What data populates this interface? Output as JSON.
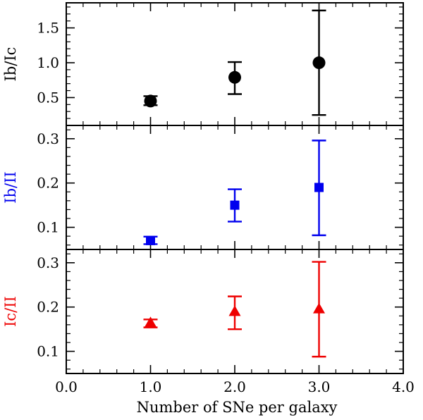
{
  "chart_data": [
    {
      "type": "scatter",
      "panel": "top",
      "ylabel": "Ib/Ic",
      "color": "#000000",
      "marker": "circle",
      "xlim": [
        0.0,
        4.0
      ],
      "ylim": [
        0.1,
        1.86
      ],
      "yticks_major": [
        0.5,
        1.0,
        1.5
      ],
      "ytick_labels": [
        "0.5",
        "1.0",
        "1.5"
      ],
      "points": [
        {
          "x": 1.0,
          "y": 0.45,
          "err_low": 0.39,
          "err_high": 0.52
        },
        {
          "x": 2.0,
          "y": 0.79,
          "err_low": 0.55,
          "err_high": 1.01
        },
        {
          "x": 3.0,
          "y": 1.0,
          "err_low": 0.25,
          "err_high": 1.75
        }
      ]
    },
    {
      "type": "scatter",
      "panel": "middle",
      "ylabel": "Ib/II",
      "color": "#0000ee",
      "marker": "square",
      "xlim": [
        0.0,
        4.0
      ],
      "ylim": [
        0.05,
        0.33
      ],
      "yticks_major": [
        0.1,
        0.2,
        0.3
      ],
      "ytick_labels": [
        "0.1",
        "0.2",
        "0.3"
      ],
      "points": [
        {
          "x": 1.0,
          "y": 0.07,
          "err_low": 0.062,
          "err_high": 0.079
        },
        {
          "x": 2.0,
          "y": 0.15,
          "err_low": 0.113,
          "err_high": 0.186
        },
        {
          "x": 3.0,
          "y": 0.19,
          "err_low": 0.082,
          "err_high": 0.296
        }
      ]
    },
    {
      "type": "scatter",
      "panel": "bottom",
      "ylabel": "Ic/II",
      "color": "#ee0000",
      "marker": "triangle",
      "xlim": [
        0.0,
        4.0
      ],
      "ylim": [
        0.05,
        0.33
      ],
      "yticks_major": [
        0.1,
        0.2,
        0.3
      ],
      "ytick_labels": [
        "0.1",
        "0.2",
        "0.3"
      ],
      "points": [
        {
          "x": 1.0,
          "y": 0.165,
          "err_low": 0.154,
          "err_high": 0.172
        },
        {
          "x": 2.0,
          "y": 0.19,
          "err_low": 0.15,
          "err_high": 0.224
        },
        {
          "x": 3.0,
          "y": 0.196,
          "err_low": 0.088,
          "err_high": 0.302
        }
      ]
    }
  ],
  "shared_x": {
    "label": "Number of SNe per galaxy",
    "ticks": [
      0.0,
      1.0,
      2.0,
      3.0,
      4.0
    ],
    "tick_labels": [
      "0.0",
      "1.0",
      "2.0",
      "3.0",
      "4.0"
    ]
  }
}
